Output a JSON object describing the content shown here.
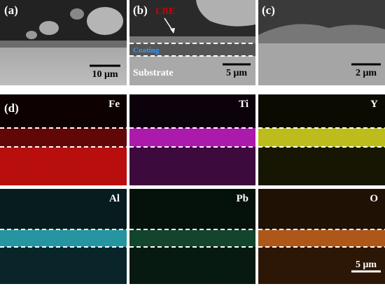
{
  "panels": [
    {
      "label": "(a)",
      "scale_bar": "10 μm"
    },
    {
      "label": "(b)",
      "scale_bar": "5 μm",
      "annotations": [
        "LBE",
        "Coating",
        "Substrate"
      ]
    },
    {
      "label": "(c)",
      "scale_bar": "2 μm"
    }
  ],
  "maps": {
    "label": "(d)",
    "elements": [
      "Fe",
      "Ti",
      "Y",
      "Al",
      "Pb",
      "O"
    ],
    "scale_bar": "5 μm"
  }
}
